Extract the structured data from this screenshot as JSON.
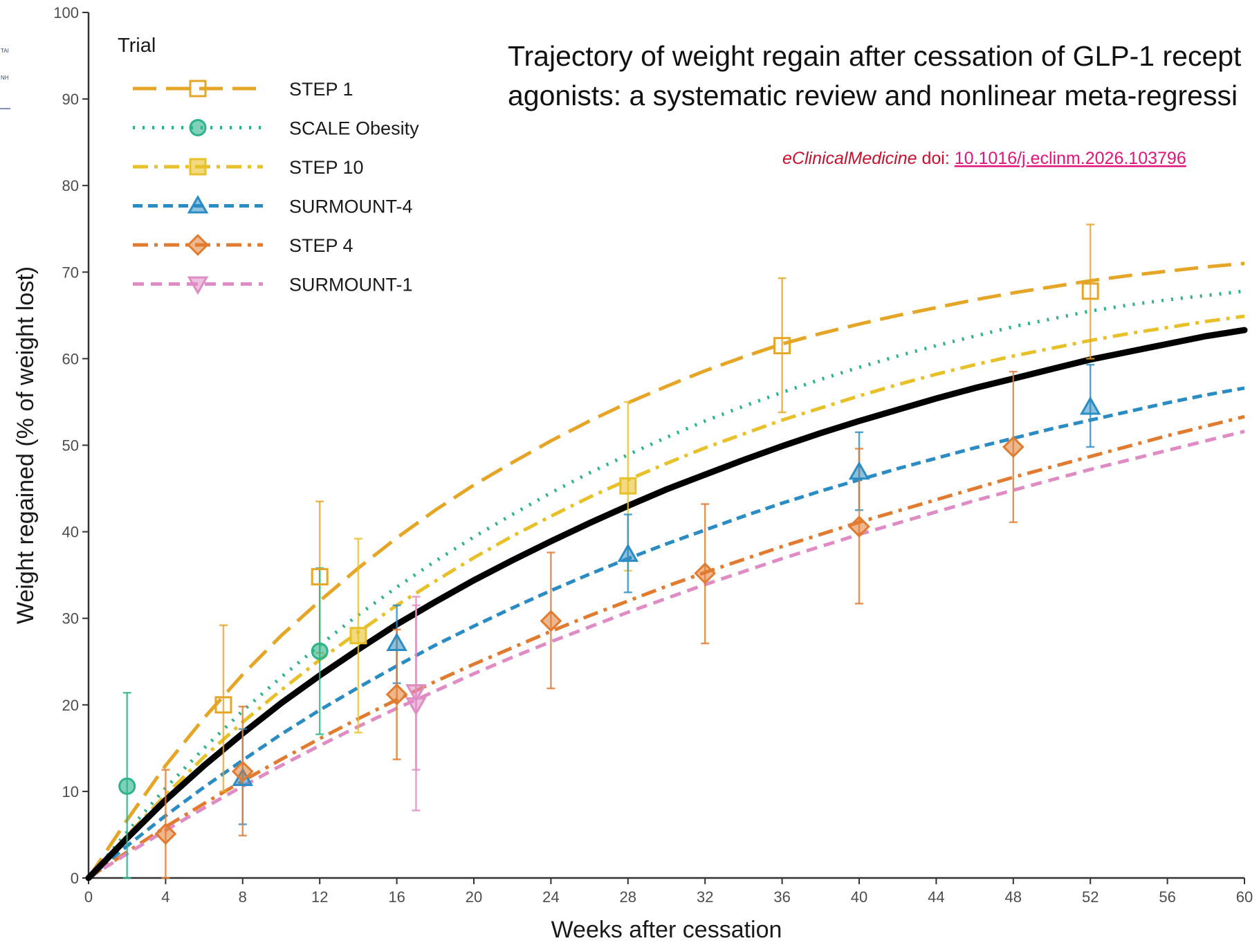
{
  "headline": {
    "line1": "Trajectory of weight regain after cessation of GLP-1 recept",
    "line2": "agonists: a systematic review and nonlinear meta-regressi"
  },
  "citation": {
    "journal": "eClinicalMedicine",
    "doi_label": " doi: ",
    "doi": "10.1016/j.eclinm.2026.103796",
    "journal_color": "#c8102e",
    "doi_color": "#e0157a"
  },
  "side_fragments": [
    "TAI",
    "NH"
  ],
  "chart_data": {
    "type": "line",
    "xlabel": "Weeks after cessation",
    "ylabel": "Weight regained (% of weight lost)",
    "xlim": [
      0,
      60
    ],
    "ylim": [
      0,
      100
    ],
    "x_ticks": [
      0,
      4,
      8,
      12,
      16,
      20,
      24,
      28,
      32,
      36,
      40,
      44,
      48,
      52,
      56,
      60
    ],
    "y_ticks": [
      0,
      10,
      20,
      30,
      40,
      50,
      60,
      70,
      80,
      90,
      100
    ],
    "grid": false,
    "legend_title": "Trial",
    "legend_position": "top-left",
    "pooled_curve": {
      "color": "#000000",
      "x": [
        0,
        2,
        4,
        6,
        8,
        10,
        12,
        14,
        16,
        18,
        20,
        22,
        24,
        26,
        28,
        30,
        32,
        34,
        36,
        38,
        40,
        42,
        44,
        46,
        48,
        50,
        52,
        54,
        56,
        58,
        60
      ],
      "y": [
        0,
        4.6,
        9.0,
        13.0,
        16.7,
        20.2,
        23.4,
        26.4,
        29.3,
        31.9,
        34.4,
        36.7,
        38.9,
        41.0,
        43.0,
        44.9,
        46.6,
        48.3,
        49.9,
        51.4,
        52.8,
        54.1,
        55.4,
        56.6,
        57.7,
        58.8,
        59.9,
        60.8,
        61.7,
        62.6,
        63.3
      ]
    },
    "series": [
      {
        "name": "STEP 1",
        "color": "#e5a526",
        "dash": "34,14",
        "marker": "square-open",
        "curve": [
          [
            0,
            0
          ],
          [
            2,
            6.7
          ],
          [
            4,
            13.0
          ],
          [
            6,
            18.5
          ],
          [
            8,
            23.5
          ],
          [
            10,
            28.0
          ],
          [
            12,
            32.0
          ],
          [
            14,
            35.8
          ],
          [
            16,
            39.3
          ],
          [
            18,
            42.5
          ],
          [
            20,
            45.4
          ],
          [
            22,
            48.0
          ],
          [
            24,
            50.5
          ],
          [
            26,
            52.8
          ],
          [
            28,
            54.9
          ],
          [
            30,
            56.8
          ],
          [
            32,
            58.6
          ],
          [
            34,
            60.2
          ],
          [
            36,
            61.7
          ],
          [
            38,
            62.9
          ],
          [
            40,
            64.0
          ],
          [
            42,
            65.0
          ],
          [
            44,
            65.9
          ],
          [
            46,
            66.8
          ],
          [
            48,
            67.6
          ],
          [
            50,
            68.3
          ],
          [
            52,
            69.0
          ],
          [
            54,
            69.6
          ],
          [
            56,
            70.1
          ],
          [
            58,
            70.6
          ],
          [
            60,
            71.0
          ]
        ],
        "points": [
          {
            "x": 7,
            "y": 20.0,
            "lo": 10.0,
            "hi": 29.2
          },
          {
            "x": 12,
            "y": 34.8,
            "lo": 26.0,
            "hi": 43.5
          },
          {
            "x": 36,
            "y": 61.5,
            "lo": 53.8,
            "hi": 69.3
          },
          {
            "x": 52,
            "y": 67.8,
            "lo": 60.0,
            "hi": 75.5
          }
        ]
      },
      {
        "name": "SCALE Obesity",
        "color": "#2db38a",
        "dash": "3,11",
        "marker": "circle",
        "curve": [
          [
            0,
            0
          ],
          [
            2,
            5.3
          ],
          [
            4,
            10.4
          ],
          [
            6,
            15.0
          ],
          [
            8,
            19.3
          ],
          [
            10,
            23.2
          ],
          [
            12,
            26.9
          ],
          [
            14,
            30.4
          ],
          [
            16,
            33.6
          ],
          [
            18,
            36.6
          ],
          [
            20,
            39.4
          ],
          [
            22,
            42.0
          ],
          [
            24,
            44.5
          ],
          [
            26,
            46.8
          ],
          [
            28,
            48.9
          ],
          [
            30,
            50.9
          ],
          [
            32,
            52.8
          ],
          [
            34,
            54.5
          ],
          [
            36,
            56.1
          ],
          [
            38,
            57.6
          ],
          [
            40,
            59.0
          ],
          [
            42,
            60.3
          ],
          [
            44,
            61.5
          ],
          [
            46,
            62.6
          ],
          [
            48,
            63.7
          ],
          [
            50,
            64.6
          ],
          [
            52,
            65.5
          ],
          [
            54,
            66.2
          ],
          [
            56,
            66.8
          ],
          [
            58,
            67.3
          ],
          [
            60,
            67.8
          ]
        ],
        "points": [
          {
            "x": 2,
            "y": 10.6,
            "lo": 0,
            "hi": 21.4
          },
          {
            "x": 12,
            "y": 26.2,
            "lo": 16.6,
            "hi": 35.8
          }
        ]
      },
      {
        "name": "STEP 10",
        "color": "#e8c12a",
        "dash": "22,9,5,9",
        "marker": "square",
        "curve": [
          [
            0,
            0
          ],
          [
            2,
            4.9
          ],
          [
            4,
            9.6
          ],
          [
            6,
            14.0
          ],
          [
            8,
            18.0
          ],
          [
            10,
            21.7
          ],
          [
            12,
            25.2
          ],
          [
            14,
            28.4
          ],
          [
            16,
            31.5
          ],
          [
            18,
            34.3
          ],
          [
            20,
            37.0
          ],
          [
            22,
            39.5
          ],
          [
            24,
            41.8
          ],
          [
            26,
            44.0
          ],
          [
            28,
            46.0
          ],
          [
            30,
            47.9
          ],
          [
            32,
            49.7
          ],
          [
            34,
            51.3
          ],
          [
            36,
            52.9
          ],
          [
            38,
            54.3
          ],
          [
            40,
            55.7
          ],
          [
            42,
            57.0
          ],
          [
            44,
            58.2
          ],
          [
            46,
            59.3
          ],
          [
            48,
            60.3
          ],
          [
            50,
            61.2
          ],
          [
            52,
            62.1
          ],
          [
            54,
            62.9
          ],
          [
            56,
            63.6
          ],
          [
            58,
            64.3
          ],
          [
            60,
            64.9
          ]
        ],
        "points": [
          {
            "x": 14,
            "y": 28.0,
            "lo": 16.8,
            "hi": 39.2
          },
          {
            "x": 28,
            "y": 45.3,
            "lo": 35.5,
            "hi": 55.0
          }
        ]
      },
      {
        "name": "SURMOUNT-4",
        "color": "#2b8cc4",
        "dash": "14,8",
        "marker": "triangle",
        "curve": [
          [
            0,
            0
          ],
          [
            2,
            3.7
          ],
          [
            4,
            7.2
          ],
          [
            6,
            10.5
          ],
          [
            8,
            13.6
          ],
          [
            10,
            16.6
          ],
          [
            12,
            19.4
          ],
          [
            14,
            22.0
          ],
          [
            16,
            24.5
          ],
          [
            18,
            26.9
          ],
          [
            20,
            29.1
          ],
          [
            22,
            31.2
          ],
          [
            24,
            33.2
          ],
          [
            26,
            35.1
          ],
          [
            28,
            36.9
          ],
          [
            30,
            38.6
          ],
          [
            32,
            40.2
          ],
          [
            34,
            41.8
          ],
          [
            36,
            43.3
          ],
          [
            38,
            44.7
          ],
          [
            40,
            46.0
          ],
          [
            42,
            47.3
          ],
          [
            44,
            48.5
          ],
          [
            46,
            49.7
          ],
          [
            48,
            50.8
          ],
          [
            50,
            51.9
          ],
          [
            52,
            52.9
          ],
          [
            54,
            53.9
          ],
          [
            56,
            54.9
          ],
          [
            58,
            55.8
          ],
          [
            60,
            56.6
          ]
        ],
        "points": [
          {
            "x": 8,
            "y": 11.5,
            "lo": 6.2,
            "hi": 17.2
          },
          {
            "x": 16,
            "y": 27.1,
            "lo": 22.5,
            "hi": 31.5
          },
          {
            "x": 28,
            "y": 37.4,
            "lo": 33.0,
            "hi": 42.0
          },
          {
            "x": 40,
            "y": 46.9,
            "lo": 42.5,
            "hi": 51.5
          },
          {
            "x": 52,
            "y": 54.4,
            "lo": 49.8,
            "hi": 59.3
          }
        ]
      },
      {
        "name": "STEP 4",
        "color": "#e07b2f",
        "dash": "22,9,5,9",
        "marker": "diamond",
        "curve": [
          [
            0,
            0
          ],
          [
            2,
            3.0
          ],
          [
            4,
            5.9
          ],
          [
            6,
            8.6
          ],
          [
            8,
            11.2
          ],
          [
            10,
            13.7
          ],
          [
            12,
            16.1
          ],
          [
            14,
            18.4
          ],
          [
            16,
            20.6
          ],
          [
            18,
            22.7
          ],
          [
            20,
            24.7
          ],
          [
            22,
            26.6
          ],
          [
            24,
            28.5
          ],
          [
            26,
            30.3
          ],
          [
            28,
            32.0
          ],
          [
            30,
            33.7
          ],
          [
            32,
            35.3
          ],
          [
            34,
            36.8
          ],
          [
            36,
            38.3
          ],
          [
            38,
            39.7
          ],
          [
            40,
            41.1
          ],
          [
            42,
            42.4
          ],
          [
            44,
            43.7
          ],
          [
            46,
            45.0
          ],
          [
            48,
            46.3
          ],
          [
            50,
            47.5
          ],
          [
            52,
            48.7
          ],
          [
            54,
            49.9
          ],
          [
            56,
            51.1
          ],
          [
            58,
            52.2
          ],
          [
            60,
            53.3
          ]
        ],
        "points": [
          {
            "x": 4,
            "y": 5.1,
            "lo": 0,
            "hi": 12.5
          },
          {
            "x": 8,
            "y": 12.3,
            "lo": 4.9,
            "hi": 19.8
          },
          {
            "x": 16,
            "y": 21.2,
            "lo": 13.7,
            "hi": 28.7
          },
          {
            "x": 24,
            "y": 29.7,
            "lo": 21.9,
            "hi": 37.6
          },
          {
            "x": 32,
            "y": 35.2,
            "lo": 27.1,
            "hi": 43.2
          },
          {
            "x": 40,
            "y": 40.6,
            "lo": 31.7,
            "hi": 49.6
          },
          {
            "x": 48,
            "y": 49.8,
            "lo": 41.1,
            "hi": 58.5
          }
        ]
      },
      {
        "name": "SURMOUNT-1",
        "color": "#e08cc4",
        "dash": "16,10",
        "marker": "triangle-down",
        "curve": [
          [
            0,
            0
          ],
          [
            2,
            2.8
          ],
          [
            4,
            5.5
          ],
          [
            6,
            8.1
          ],
          [
            8,
            10.6
          ],
          [
            10,
            13.0
          ],
          [
            12,
            15.3
          ],
          [
            14,
            17.5
          ],
          [
            16,
            19.6
          ],
          [
            18,
            21.6
          ],
          [
            20,
            23.6
          ],
          [
            22,
            25.5
          ],
          [
            24,
            27.3
          ],
          [
            26,
            29.0
          ],
          [
            28,
            30.7
          ],
          [
            30,
            32.3
          ],
          [
            32,
            33.9
          ],
          [
            34,
            35.4
          ],
          [
            36,
            36.9
          ],
          [
            38,
            38.3
          ],
          [
            40,
            39.7
          ],
          [
            42,
            41.0
          ],
          [
            44,
            42.3
          ],
          [
            46,
            43.6
          ],
          [
            48,
            44.8
          ],
          [
            50,
            46.0
          ],
          [
            52,
            47.2
          ],
          [
            54,
            48.3
          ],
          [
            56,
            49.4
          ],
          [
            58,
            50.5
          ],
          [
            60,
            51.6
          ]
        ],
        "points": [
          {
            "x": 17,
            "y": 21.5,
            "lo": 12.5,
            "hi": 31.5
          },
          {
            "x": 17,
            "y": 20.0,
            "lo": 7.8,
            "hi": 32.5
          }
        ]
      }
    ]
  }
}
